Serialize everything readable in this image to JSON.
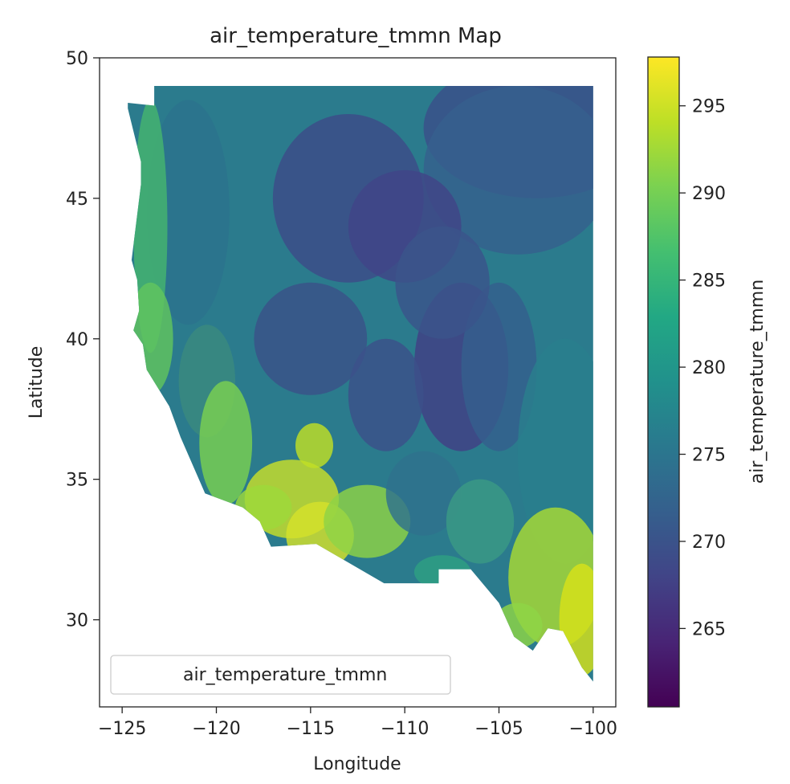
{
  "chart_data": {
    "type": "heatmap",
    "title": "air_temperature_tmmn Map",
    "xlabel": "Longitude",
    "ylabel": "Latitude",
    "xlim": [
      -126.2,
      -98.8
    ],
    "ylim": [
      26.9,
      50.0
    ],
    "x_ticks": [
      -125,
      -120,
      -115,
      -110,
      -105,
      -100
    ],
    "x_tick_labels": [
      "−125",
      "−120",
      "−115",
      "−110",
      "−105",
      "−100"
    ],
    "y_ticks": [
      30,
      35,
      40,
      45,
      50
    ],
    "y_tick_labels": [
      "30",
      "35",
      "40",
      "45",
      "50"
    ],
    "legend": {
      "label": "air_temperature_tmmn",
      "placement": "lower-left"
    },
    "colorbar": {
      "label": "air_temperature_tmmn",
      "colormap": "viridis",
      "range": [
        260.5,
        297.8
      ],
      "ticks": [
        265,
        270,
        275,
        280,
        285,
        290,
        295
      ],
      "tick_labels": [
        "265",
        "270",
        "275",
        "280",
        "285",
        "290",
        "295"
      ]
    },
    "domain_outline_lonlat": [
      [
        -123.3,
        49.0
      ],
      [
        -100.0,
        49.0
      ],
      [
        -100.0,
        27.8
      ],
      [
        -100.6,
        28.3
      ],
      [
        -101.6,
        29.6
      ],
      [
        -102.4,
        29.7
      ],
      [
        -103.2,
        28.9
      ],
      [
        -104.2,
        29.4
      ],
      [
        -105.0,
        30.6
      ],
      [
        -106.5,
        31.8
      ],
      [
        -108.2,
        31.8
      ],
      [
        -108.2,
        31.3
      ],
      [
        -111.1,
        31.3
      ],
      [
        -114.7,
        32.7
      ],
      [
        -117.1,
        32.6
      ],
      [
        -117.7,
        33.5
      ],
      [
        -118.6,
        34.0
      ],
      [
        -120.6,
        34.5
      ],
      [
        -121.9,
        36.5
      ],
      [
        -122.5,
        37.6
      ],
      [
        -123.7,
        38.9
      ],
      [
        -123.9,
        39.8
      ],
      [
        -124.4,
        40.3
      ],
      [
        -124.1,
        41.0
      ],
      [
        -124.2,
        42.1
      ],
      [
        -124.5,
        42.8
      ],
      [
        -124.0,
        45.5
      ],
      [
        -124.0,
        46.3
      ],
      [
        -124.7,
        48.2
      ],
      [
        -124.7,
        48.4
      ],
      [
        -123.3,
        48.3
      ]
    ]
  }
}
